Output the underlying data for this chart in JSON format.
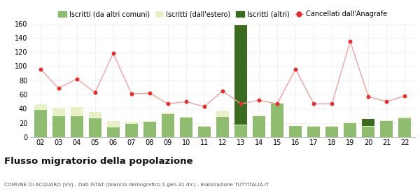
{
  "years": [
    "02",
    "03",
    "04",
    "05",
    "06",
    "07",
    "08",
    "09",
    "10",
    "11",
    "12",
    "13",
    "14",
    "15",
    "16",
    "17",
    "18",
    "19",
    "20",
    "21",
    "22"
  ],
  "iscritti_altri_comuni": [
    38,
    30,
    30,
    27,
    14,
    19,
    22,
    33,
    28,
    15,
    29,
    17,
    30,
    47,
    16,
    15,
    15,
    20,
    15,
    23,
    27
  ],
  "iscritti_estero": [
    8,
    11,
    12,
    8,
    9,
    3,
    1,
    1,
    1,
    1,
    8,
    1,
    1,
    1,
    0,
    1,
    1,
    1,
    1,
    1,
    2
  ],
  "iscritti_altri": [
    0,
    0,
    0,
    0,
    0,
    0,
    0,
    0,
    0,
    0,
    0,
    140,
    0,
    0,
    0,
    0,
    0,
    0,
    10,
    0,
    0
  ],
  "cancellati": [
    96,
    69,
    82,
    63,
    118,
    61,
    62,
    47,
    50,
    43,
    65,
    47,
    52,
    47,
    96,
    47,
    47,
    135,
    57,
    50,
    58
  ],
  "color_altri_comuni": "#8fbc6e",
  "color_estero": "#e8f0c8",
  "color_altri": "#3a6b1e",
  "color_cancellati_line": "#f0a0a0",
  "color_cancellati_marker": "#e03030",
  "ylim": [
    0,
    160
  ],
  "yticks": [
    0,
    20,
    40,
    60,
    80,
    100,
    120,
    140,
    160
  ],
  "title": "Flusso migratorio della popolazione",
  "subtitle": "COMUNE DI ACQUARO (VV) - Dati ISTAT (bilancio demografico 1 gen-31 dic) - Elaborazione TUTTITALIA.IT",
  "legend_labels": [
    "Iscritti (da altri comuni)",
    "Iscritti (dall'estero)",
    "Iscritti (altri)",
    "Cancellati dall'Anagrafe"
  ],
  "bg_color": "#ffffff",
  "grid_color": "#cccccc"
}
